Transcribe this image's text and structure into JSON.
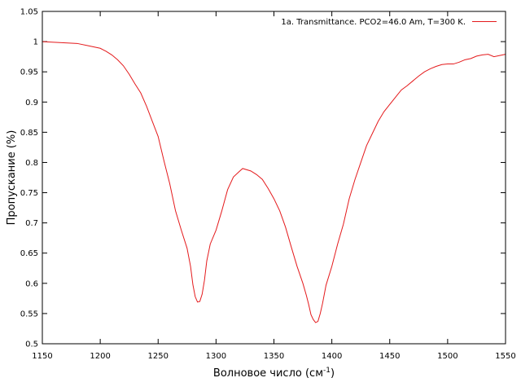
{
  "chart_data": {
    "type": "line",
    "xlabel": "Волновое число (см",
    "xlabel_superscript": "-1",
    "xlabel_suffix": ")",
    "ylabel": "Пропускание (%)",
    "xlim": [
      1150,
      1550
    ],
    "ylim": [
      0.5,
      1.05
    ],
    "xticks": [
      "1150",
      "1200",
      "1250",
      "1300",
      "1350",
      "1400",
      "1450",
      "1500",
      "1550"
    ],
    "yticks": [
      "0.5",
      "0.55",
      "0.6",
      "0.65",
      "0.7",
      "0.75",
      "0.8",
      "0.85",
      "0.9",
      "0.95",
      "1",
      "1.05"
    ],
    "grid": false,
    "legend_position": "top-right",
    "series": [
      {
        "name": "1a. Transmittance. PCO2=46.0 Am, T=300 K.",
        "color": "#e41a1c",
        "x": [
          1150,
          1160,
          1170,
          1180,
          1190,
          1200,
          1205,
          1210,
          1215,
          1220,
          1225,
          1230,
          1235,
          1240,
          1245,
          1250,
          1255,
          1260,
          1265,
          1270,
          1275,
          1278,
          1280,
          1282,
          1284,
          1286,
          1288,
          1290,
          1292,
          1295,
          1300,
          1305,
          1310,
          1315,
          1320,
          1323,
          1330,
          1335,
          1340,
          1345,
          1350,
          1355,
          1360,
          1365,
          1370,
          1375,
          1378,
          1380,
          1382,
          1384,
          1386,
          1388,
          1390,
          1392,
          1395,
          1400,
          1405,
          1410,
          1415,
          1420,
          1425,
          1430,
          1435,
          1440,
          1445,
          1450,
          1455,
          1460,
          1465,
          1470,
          1475,
          1480,
          1485,
          1490,
          1495,
          1500,
          1505,
          1510,
          1515,
          1520,
          1525,
          1530,
          1535,
          1540,
          1545,
          1550
        ],
        "y": [
          1.0,
          0.999,
          0.998,
          0.997,
          0.993,
          0.989,
          0.984,
          0.978,
          0.97,
          0.96,
          0.946,
          0.93,
          0.915,
          0.893,
          0.868,
          0.843,
          0.803,
          0.765,
          0.72,
          0.688,
          0.658,
          0.628,
          0.598,
          0.578,
          0.569,
          0.57,
          0.582,
          0.605,
          0.637,
          0.665,
          0.688,
          0.72,
          0.755,
          0.776,
          0.785,
          0.79,
          0.786,
          0.78,
          0.772,
          0.757,
          0.74,
          0.72,
          0.693,
          0.66,
          0.628,
          0.6,
          0.58,
          0.565,
          0.548,
          0.54,
          0.535,
          0.537,
          0.55,
          0.567,
          0.597,
          0.628,
          0.665,
          0.698,
          0.74,
          0.772,
          0.8,
          0.828,
          0.848,
          0.868,
          0.884,
          0.896,
          0.908,
          0.92,
          0.927,
          0.935,
          0.943,
          0.95,
          0.955,
          0.959,
          0.962,
          0.963,
          0.963,
          0.966,
          0.97,
          0.972,
          0.976,
          0.978,
          0.979,
          0.975,
          0.977,
          0.979
        ]
      }
    ]
  }
}
